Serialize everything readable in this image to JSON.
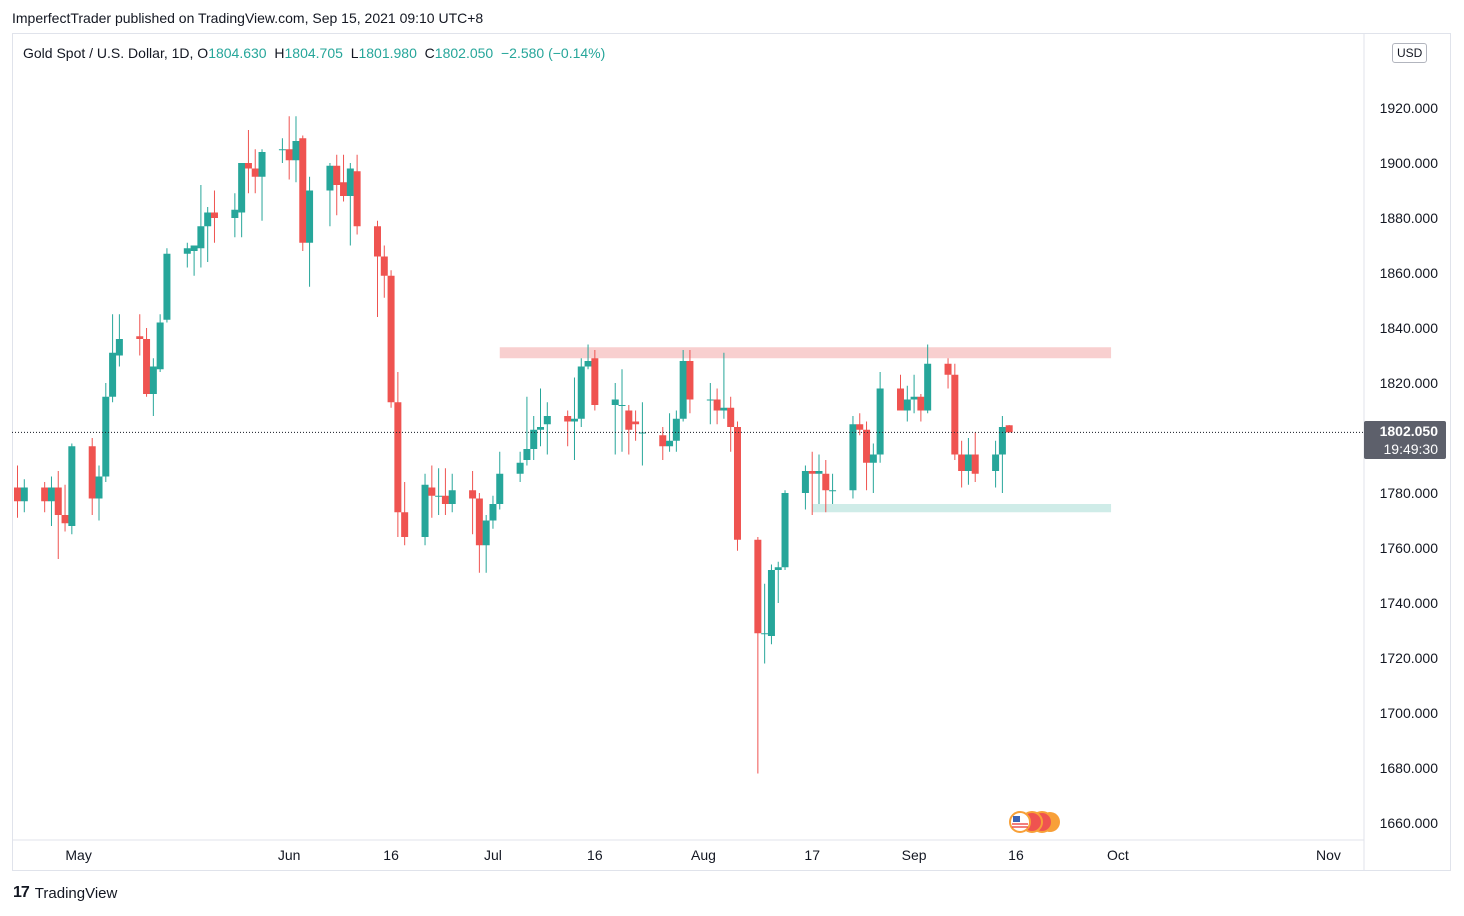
{
  "header": {
    "publisher_line": "ImperfectTrader published on TradingView.com, Sep 15, 2021 09:10 UTC+8"
  },
  "legend": {
    "symbol": "Gold Spot / U.S. Dollar, 1D,",
    "open_label": "O",
    "open": "1804.630",
    "high_label": "H",
    "high": "1804.705",
    "low_label": "L",
    "low": "1801.980",
    "close_label": "C",
    "close": "1802.050",
    "change": "−2.580 (−0.14%)"
  },
  "currency_badge": "USD",
  "last_price": {
    "value": "1802.050",
    "countdown": "19:49:30"
  },
  "footer": {
    "logo": "17",
    "brand": "TradingView"
  },
  "colors": {
    "up": "#26a69a",
    "down": "#ef5350",
    "resistance_zone": "#f8cfcf",
    "support_zone": "#cfece8"
  },
  "chart_data": {
    "type": "candlestick",
    "title": "Gold Spot / U.S. Dollar, 1D",
    "ylim": [
      1655,
      1925
    ],
    "y_ticks": [
      1660,
      1680,
      1700,
      1720,
      1740,
      1760,
      1780,
      1800,
      1820,
      1840,
      1860,
      1880,
      1900,
      1920
    ],
    "y_tick_labels": [
      "1660.000",
      "1680.000",
      "1700.000",
      "1720.000",
      "1740.000",
      "1760.000",
      "1780.000",
      "1800.000",
      "1820.000",
      "1840.000",
      "1860.000",
      "1880.000",
      "1900.000",
      "1920.000"
    ],
    "x_labels": [
      {
        "label": "May",
        "date": "2021-05-01"
      },
      {
        "label": "Jun",
        "date": "2021-06-01"
      },
      {
        "label": "16",
        "date": "2021-06-16"
      },
      {
        "label": "Jul",
        "date": "2021-07-01"
      },
      {
        "label": "16",
        "date": "2021-07-16"
      },
      {
        "label": "Aug",
        "date": "2021-08-01"
      },
      {
        "label": "17",
        "date": "2021-08-17"
      },
      {
        "label": "Sep",
        "date": "2021-09-01"
      },
      {
        "label": "16",
        "date": "2021-09-16"
      },
      {
        "label": "Oct",
        "date": "2021-10-01"
      },
      {
        "label": "Nov",
        "date": "2021-11-01"
      }
    ],
    "x_range": [
      "2021-04-22",
      "2021-11-03"
    ],
    "zones": [
      {
        "type": "resistance",
        "from": "2021-07-02",
        "to": "2021-09-30",
        "y_low": 1829,
        "y_high": 1833
      },
      {
        "type": "support",
        "from": "2021-08-17",
        "to": "2021-09-30",
        "y_low": 1773,
        "y_high": 1776
      }
    ],
    "last_price_line": 1802.05,
    "candles": [
      {
        "d": "2021-04-22",
        "o": 1782,
        "h": 1790,
        "l": 1771,
        "c": 1777
      },
      {
        "d": "2021-04-23",
        "o": 1777,
        "h": 1785,
        "l": 1773,
        "c": 1782
      },
      {
        "d": "2021-04-26",
        "o": 1782,
        "h": 1784,
        "l": 1773,
        "c": 1777
      },
      {
        "d": "2021-04-27",
        "o": 1777,
        "h": 1786,
        "l": 1768,
        "c": 1782
      },
      {
        "d": "2021-04-28",
        "o": 1782,
        "h": 1788,
        "l": 1756,
        "c": 1772
      },
      {
        "d": "2021-04-29",
        "o": 1772,
        "h": 1783,
        "l": 1766,
        "c": 1769
      },
      {
        "d": "2021-04-30",
        "o": 1768,
        "h": 1798,
        "l": 1765,
        "c": 1797
      },
      {
        "d": "2021-05-03",
        "o": 1797,
        "h": 1800,
        "l": 1772,
        "c": 1778
      },
      {
        "d": "2021-05-04",
        "o": 1778,
        "h": 1790,
        "l": 1770,
        "c": 1786
      },
      {
        "d": "2021-05-05",
        "o": 1786,
        "h": 1820,
        "l": 1784,
        "c": 1815
      },
      {
        "d": "2021-05-06",
        "o": 1815,
        "h": 1845,
        "l": 1813,
        "c": 1831
      },
      {
        "d": "2021-05-07",
        "o": 1830,
        "h": 1845,
        "l": 1826,
        "c": 1836
      },
      {
        "d": "2021-05-10",
        "o": 1837,
        "h": 1845,
        "l": 1830,
        "c": 1836
      },
      {
        "d": "2021-05-11",
        "o": 1836,
        "h": 1840,
        "l": 1815,
        "c": 1816
      },
      {
        "d": "2021-05-12",
        "o": 1816,
        "h": 1829,
        "l": 1808,
        "c": 1826
      },
      {
        "d": "2021-05-13",
        "o": 1825,
        "h": 1845,
        "l": 1824,
        "c": 1842
      },
      {
        "d": "2021-05-14",
        "o": 1843,
        "h": 1869,
        "l": 1842,
        "c": 1867
      },
      {
        "d": "2021-05-17",
        "o": 1867,
        "h": 1871,
        "l": 1862,
        "c": 1869
      },
      {
        "d": "2021-05-18",
        "o": 1868,
        "h": 1870,
        "l": 1859,
        "c": 1870
      },
      {
        "d": "2021-05-19",
        "o": 1869,
        "h": 1892,
        "l": 1862,
        "c": 1877
      },
      {
        "d": "2021-05-20",
        "o": 1877,
        "h": 1884,
        "l": 1864,
        "c": 1882
      },
      {
        "d": "2021-05-21",
        "o": 1882,
        "h": 1890,
        "l": 1871,
        "c": 1880
      },
      {
        "d": "2021-05-24",
        "o": 1880,
        "h": 1889,
        "l": 1873,
        "c": 1883
      },
      {
        "d": "2021-05-25",
        "o": 1882,
        "h": 1900,
        "l": 1873,
        "c": 1900
      },
      {
        "d": "2021-05-26",
        "o": 1900,
        "h": 1912,
        "l": 1889,
        "c": 1898
      },
      {
        "d": "2021-05-27",
        "o": 1898,
        "h": 1905,
        "l": 1889,
        "c": 1895
      },
      {
        "d": "2021-05-28",
        "o": 1895,
        "h": 1905,
        "l": 1879,
        "c": 1904
      },
      {
        "d": "2021-05-31",
        "o": 1905,
        "h": 1909,
        "l": 1900,
        "c": 1905
      },
      {
        "d": "2021-06-01",
        "o": 1905,
        "h": 1917,
        "l": 1894,
        "c": 1901
      },
      {
        "d": "2021-06-02",
        "o": 1901,
        "h": 1917,
        "l": 1893,
        "c": 1908
      },
      {
        "d": "2021-06-03",
        "o": 1909,
        "h": 1910,
        "l": 1868,
        "c": 1871
      },
      {
        "d": "2021-06-04",
        "o": 1871,
        "h": 1895,
        "l": 1855,
        "c": 1890
      },
      {
        "d": "2021-06-07",
        "o": 1890,
        "h": 1900,
        "l": 1877,
        "c": 1899
      },
      {
        "d": "2021-06-08",
        "o": 1899,
        "h": 1903,
        "l": 1881,
        "c": 1892
      },
      {
        "d": "2021-06-09",
        "o": 1893,
        "h": 1903,
        "l": 1886,
        "c": 1888
      },
      {
        "d": "2021-06-10",
        "o": 1888,
        "h": 1900,
        "l": 1870,
        "c": 1898
      },
      {
        "d": "2021-06-11",
        "o": 1897,
        "h": 1903,
        "l": 1874,
        "c": 1877
      },
      {
        "d": "2021-06-14",
        "o": 1877,
        "h": 1879,
        "l": 1844,
        "c": 1866
      },
      {
        "d": "2021-06-15",
        "o": 1866,
        "h": 1870,
        "l": 1851,
        "c": 1859
      },
      {
        "d": "2021-06-16",
        "o": 1859,
        "h": 1861,
        "l": 1811,
        "c": 1813
      },
      {
        "d": "2021-06-17",
        "o": 1813,
        "h": 1824,
        "l": 1764,
        "c": 1773
      },
      {
        "d": "2021-06-18",
        "o": 1773,
        "h": 1784,
        "l": 1761,
        "c": 1764
      },
      {
        "d": "2021-06-21",
        "o": 1764,
        "h": 1787,
        "l": 1761,
        "c": 1783
      },
      {
        "d": "2021-06-22",
        "o": 1782,
        "h": 1790,
        "l": 1771,
        "c": 1779
      },
      {
        "d": "2021-06-23",
        "o": 1779,
        "h": 1789,
        "l": 1772,
        "c": 1779
      },
      {
        "d": "2021-06-24",
        "o": 1779,
        "h": 1789,
        "l": 1772,
        "c": 1776
      },
      {
        "d": "2021-06-25",
        "o": 1776,
        "h": 1787,
        "l": 1773,
        "c": 1781
      },
      {
        "d": "2021-06-28",
        "o": 1781,
        "h": 1788,
        "l": 1765,
        "c": 1778
      },
      {
        "d": "2021-06-29",
        "o": 1778,
        "h": 1780,
        "l": 1751,
        "c": 1761
      },
      {
        "d": "2021-06-30",
        "o": 1761,
        "h": 1772,
        "l": 1751,
        "c": 1770
      },
      {
        "d": "2021-07-01",
        "o": 1770,
        "h": 1779,
        "l": 1767,
        "c": 1776
      },
      {
        "d": "2021-07-02",
        "o": 1776,
        "h": 1795,
        "l": 1774,
        "c": 1787
      },
      {
        "d": "2021-07-05",
        "o": 1787,
        "h": 1795,
        "l": 1784,
        "c": 1791
      },
      {
        "d": "2021-07-06",
        "o": 1792,
        "h": 1815,
        "l": 1790,
        "c": 1796
      },
      {
        "d": "2021-07-07",
        "o": 1796,
        "h": 1808,
        "l": 1792,
        "c": 1803
      },
      {
        "d": "2021-07-08",
        "o": 1803,
        "h": 1818,
        "l": 1797,
        "c": 1804
      },
      {
        "d": "2021-07-09",
        "o": 1805,
        "h": 1813,
        "l": 1794,
        "c": 1808
      },
      {
        "d": "2021-07-12",
        "o": 1808,
        "h": 1810,
        "l": 1797,
        "c": 1806
      },
      {
        "d": "2021-07-13",
        "o": 1806,
        "h": 1822,
        "l": 1792,
        "c": 1807
      },
      {
        "d": "2021-07-14",
        "o": 1807,
        "h": 1829,
        "l": 1804,
        "c": 1826
      },
      {
        "d": "2021-07-15",
        "o": 1826,
        "h": 1834,
        "l": 1825,
        "c": 1828
      },
      {
        "d": "2021-07-16",
        "o": 1829,
        "h": 1832,
        "l": 1810,
        "c": 1812
      },
      {
        "d": "2021-07-19",
        "o": 1812,
        "h": 1820,
        "l": 1794,
        "c": 1814
      },
      {
        "d": "2021-07-20",
        "o": 1812,
        "h": 1825,
        "l": 1795,
        "c": 1812
      },
      {
        "d": "2021-07-21",
        "o": 1810,
        "h": 1812,
        "l": 1794,
        "c": 1803
      },
      {
        "d": "2021-07-22",
        "o": 1806,
        "h": 1810,
        "l": 1799,
        "c": 1805
      },
      {
        "d": "2021-07-23",
        "o": 1802,
        "h": 1813,
        "l": 1790,
        "c": 1802
      },
      {
        "d": "2021-07-26",
        "o": 1801,
        "h": 1804,
        "l": 1792,
        "c": 1797
      },
      {
        "d": "2021-07-27",
        "o": 1797,
        "h": 1809,
        "l": 1795,
        "c": 1799
      },
      {
        "d": "2021-07-28",
        "o": 1799,
        "h": 1810,
        "l": 1795,
        "c": 1807
      },
      {
        "d": "2021-07-29",
        "o": 1807,
        "h": 1832,
        "l": 1806,
        "c": 1828
      },
      {
        "d": "2021-07-30",
        "o": 1828,
        "h": 1832,
        "l": 1809,
        "c": 1814
      },
      {
        "d": "2021-08-02",
        "o": 1814,
        "h": 1820,
        "l": 1805,
        "c": 1814
      },
      {
        "d": "2021-08-03",
        "o": 1814,
        "h": 1818,
        "l": 1805,
        "c": 1810
      },
      {
        "d": "2021-08-04",
        "o": 1810,
        "h": 1831,
        "l": 1807,
        "c": 1811
      },
      {
        "d": "2021-08-05",
        "o": 1811,
        "h": 1815,
        "l": 1795,
        "c": 1804
      },
      {
        "d": "2021-08-06",
        "o": 1804,
        "h": 1806,
        "l": 1759,
        "c": 1763
      },
      {
        "d": "2021-08-09",
        "o": 1763,
        "h": 1764,
        "l": 1678,
        "c": 1729
      },
      {
        "d": "2021-08-10",
        "o": 1729,
        "h": 1747,
        "l": 1718,
        "c": 1729
      },
      {
        "d": "2021-08-11",
        "o": 1728,
        "h": 1754,
        "l": 1725,
        "c": 1752
      },
      {
        "d": "2021-08-12",
        "o": 1752,
        "h": 1755,
        "l": 1740,
        "c": 1753
      },
      {
        "d": "2021-08-13",
        "o": 1753,
        "h": 1781,
        "l": 1752,
        "c": 1780
      },
      {
        "d": "2021-08-16",
        "o": 1780,
        "h": 1790,
        "l": 1774,
        "c": 1788
      },
      {
        "d": "2021-08-17",
        "o": 1788,
        "h": 1795,
        "l": 1772,
        "c": 1787
      },
      {
        "d": "2021-08-18",
        "o": 1787,
        "h": 1794,
        "l": 1776,
        "c": 1788
      },
      {
        "d": "2021-08-19",
        "o": 1787,
        "h": 1792,
        "l": 1773,
        "c": 1781
      },
      {
        "d": "2021-08-20",
        "o": 1781,
        "h": 1787,
        "l": 1776,
        "c": 1781
      },
      {
        "d": "2021-08-23",
        "o": 1781,
        "h": 1808,
        "l": 1778,
        "c": 1805
      },
      {
        "d": "2021-08-24",
        "o": 1805,
        "h": 1809,
        "l": 1801,
        "c": 1803
      },
      {
        "d": "2021-08-25",
        "o": 1803,
        "h": 1806,
        "l": 1781,
        "c": 1791
      },
      {
        "d": "2021-08-26",
        "o": 1791,
        "h": 1798,
        "l": 1780,
        "c": 1794
      },
      {
        "d": "2021-08-27",
        "o": 1794,
        "h": 1824,
        "l": 1791,
        "c": 1818
      },
      {
        "d": "2021-08-30",
        "o": 1818,
        "h": 1823,
        "l": 1810,
        "c": 1810
      },
      {
        "d": "2021-08-31",
        "o": 1810,
        "h": 1819,
        "l": 1806,
        "c": 1814
      },
      {
        "d": "2021-09-01",
        "o": 1814,
        "h": 1823,
        "l": 1809,
        "c": 1815
      },
      {
        "d": "2021-09-02",
        "o": 1815,
        "h": 1816,
        "l": 1806,
        "c": 1810
      },
      {
        "d": "2021-09-03",
        "o": 1810,
        "h": 1834,
        "l": 1809,
        "c": 1827
      },
      {
        "d": "2021-09-06",
        "o": 1827,
        "h": 1829,
        "l": 1818,
        "c": 1823
      },
      {
        "d": "2021-09-07",
        "o": 1823,
        "h": 1827,
        "l": 1792,
        "c": 1794
      },
      {
        "d": "2021-09-08",
        "o": 1794,
        "h": 1799,
        "l": 1782,
        "c": 1788
      },
      {
        "d": "2021-09-09",
        "o": 1788,
        "h": 1800,
        "l": 1783,
        "c": 1794
      },
      {
        "d": "2021-09-10",
        "o": 1794,
        "h": 1802,
        "l": 1784,
        "c": 1787
      },
      {
        "d": "2021-09-13",
        "o": 1788,
        "h": 1799,
        "l": 1782,
        "c": 1794
      },
      {
        "d": "2021-09-14",
        "o": 1794,
        "h": 1808,
        "l": 1780,
        "c": 1804
      },
      {
        "d": "2021-09-15",
        "o": 1804.63,
        "h": 1804.705,
        "l": 1801.98,
        "c": 1802.05
      }
    ]
  }
}
